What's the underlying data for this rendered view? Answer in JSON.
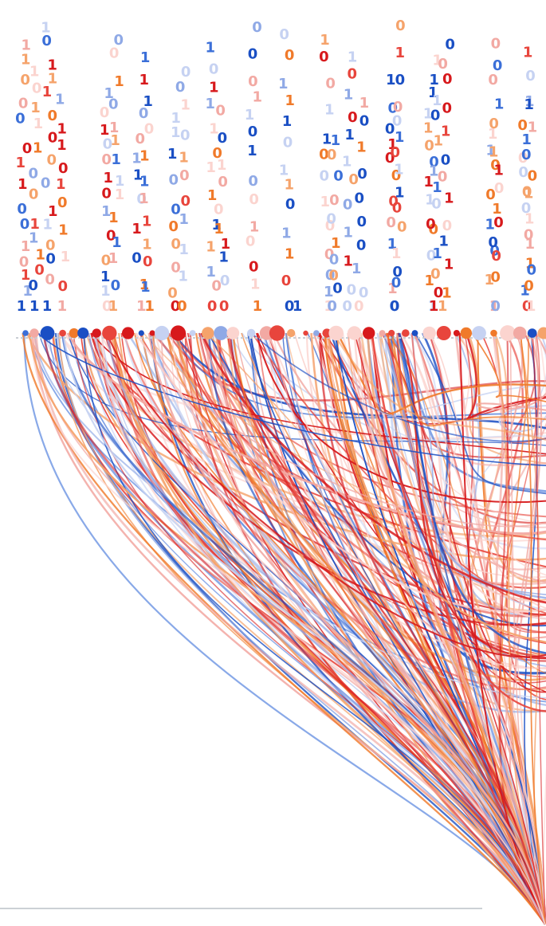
{
  "palette": {
    "deep_red": "#d7191c",
    "red": "#e8453c",
    "orange": "#f07a2a",
    "light_orange": "#f5a36b",
    "pink": "#f2a9a3",
    "pale_pink": "#fbd4cf",
    "deep_blue": "#1a4fc4",
    "blue": "#3b6fd8",
    "light_blue": "#8fa9e6",
    "pale_blue": "#c6d2f2",
    "baseline": "#c9ced4"
  },
  "binary_glyphs": [
    "0",
    "1"
  ],
  "sink": "bottom-right",
  "footer_rule": true
}
